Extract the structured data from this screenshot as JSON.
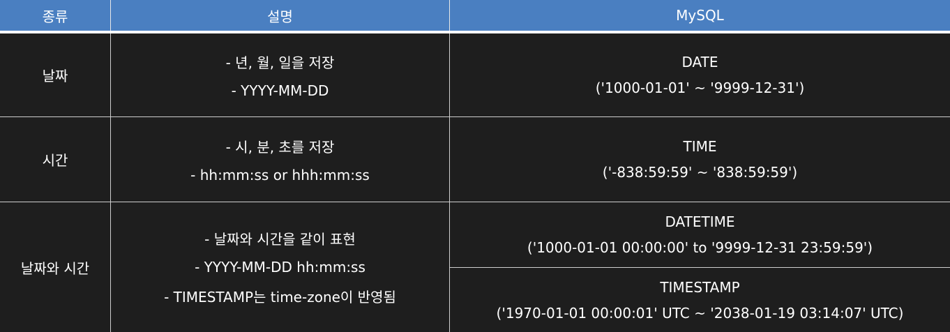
{
  "header": {
    "col1": "종류",
    "col2": "설명",
    "col3": "MySQL"
  },
  "rows": [
    {
      "type": "날짜",
      "desc": [
        "- 년, 월, 일을 저장",
        "- YYYY-MM-DD"
      ],
      "mysql": [
        {
          "name": "DATE",
          "range": "('1000-01-01' ~ '9999-12-31')"
        }
      ]
    },
    {
      "type": "시간",
      "desc": [
        "- 시, 분, 초를 저장",
        "- hh:mm:ss or hhh:mm:ss"
      ],
      "mysql": [
        {
          "name": "TIME",
          "range": "('-838:59:59' ~ '838:59:59')"
        }
      ]
    },
    {
      "type": "날짜와 시간",
      "desc": [
        "- 날짜와 시간을 같이 표현",
        "- YYYY-MM-DD hh:mm:ss",
        "- TIMESTAMP는 time-zone이 반영됨"
      ],
      "mysql": [
        {
          "name": "DATETIME",
          "range": "('1000-01-01 00:00:00' to '9999-12-31 23:59:59')"
        },
        {
          "name": "TIMESTAMP",
          "range": "('1970-01-01 00:00:01' UTC ~ '2038-01-19 03:14:07' UTC)"
        }
      ]
    }
  ],
  "colors": {
    "header_bg": "#4a7fc1",
    "body_bg": "#1e1e1e",
    "text": "#ffffff"
  }
}
